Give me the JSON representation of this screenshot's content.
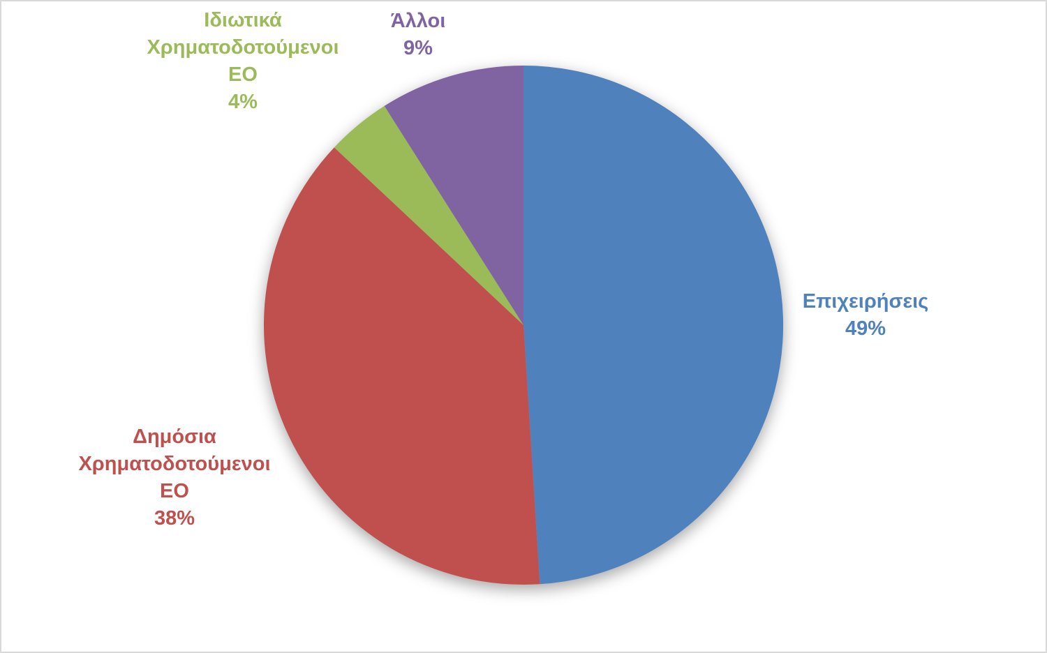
{
  "canvas": {
    "background_color": "#FFFFFF",
    "frame_border_color": "#D9D9D9"
  },
  "chart_data": {
    "type": "pie",
    "title": "",
    "legend": "none",
    "unit": "%",
    "total": 100,
    "start_angle_deg": 0,
    "direction": "clockwise",
    "data_label_style": "category name + percent, outside end, bold, colored to match slice",
    "categories": [
      "Επιχειρήσεις",
      "Δημόσια Χρηματοδοτούμενοι ΕΟ",
      "Ιδιωτικά Χρηματοδοτούμενοι ΕΟ",
      "Άλλοι"
    ],
    "values": [
      49,
      38,
      4,
      9
    ],
    "slices": [
      {
        "name": "Επιχειρήσεις",
        "value": 49,
        "percent_label": "49%",
        "color": "#4F81BD",
        "label_lines": [
          "Επιχειρήσεις",
          "49%"
        ]
      },
      {
        "name": "Δημόσια Χρηματοδοτούμενοι ΕΟ",
        "value": 38,
        "percent_label": "38%",
        "color": "#C0504D",
        "label_lines": [
          "Δημόσια",
          "Χρηματοδοτούμενοι",
          "ΕΟ",
          "38%"
        ]
      },
      {
        "name": "Ιδιωτικά Χρηματοδοτούμενοι ΕΟ",
        "value": 4,
        "percent_label": "4%",
        "color": "#9BBB59",
        "label_lines": [
          "Ιδιωτικά",
          "Χρηματοδοτούμενοι",
          "ΕΟ",
          "4%"
        ]
      },
      {
        "name": "Άλλοι",
        "value": 9,
        "percent_label": "9%",
        "color": "#8064A2",
        "label_lines": [
          "Άλλοι",
          "9%"
        ]
      }
    ]
  }
}
